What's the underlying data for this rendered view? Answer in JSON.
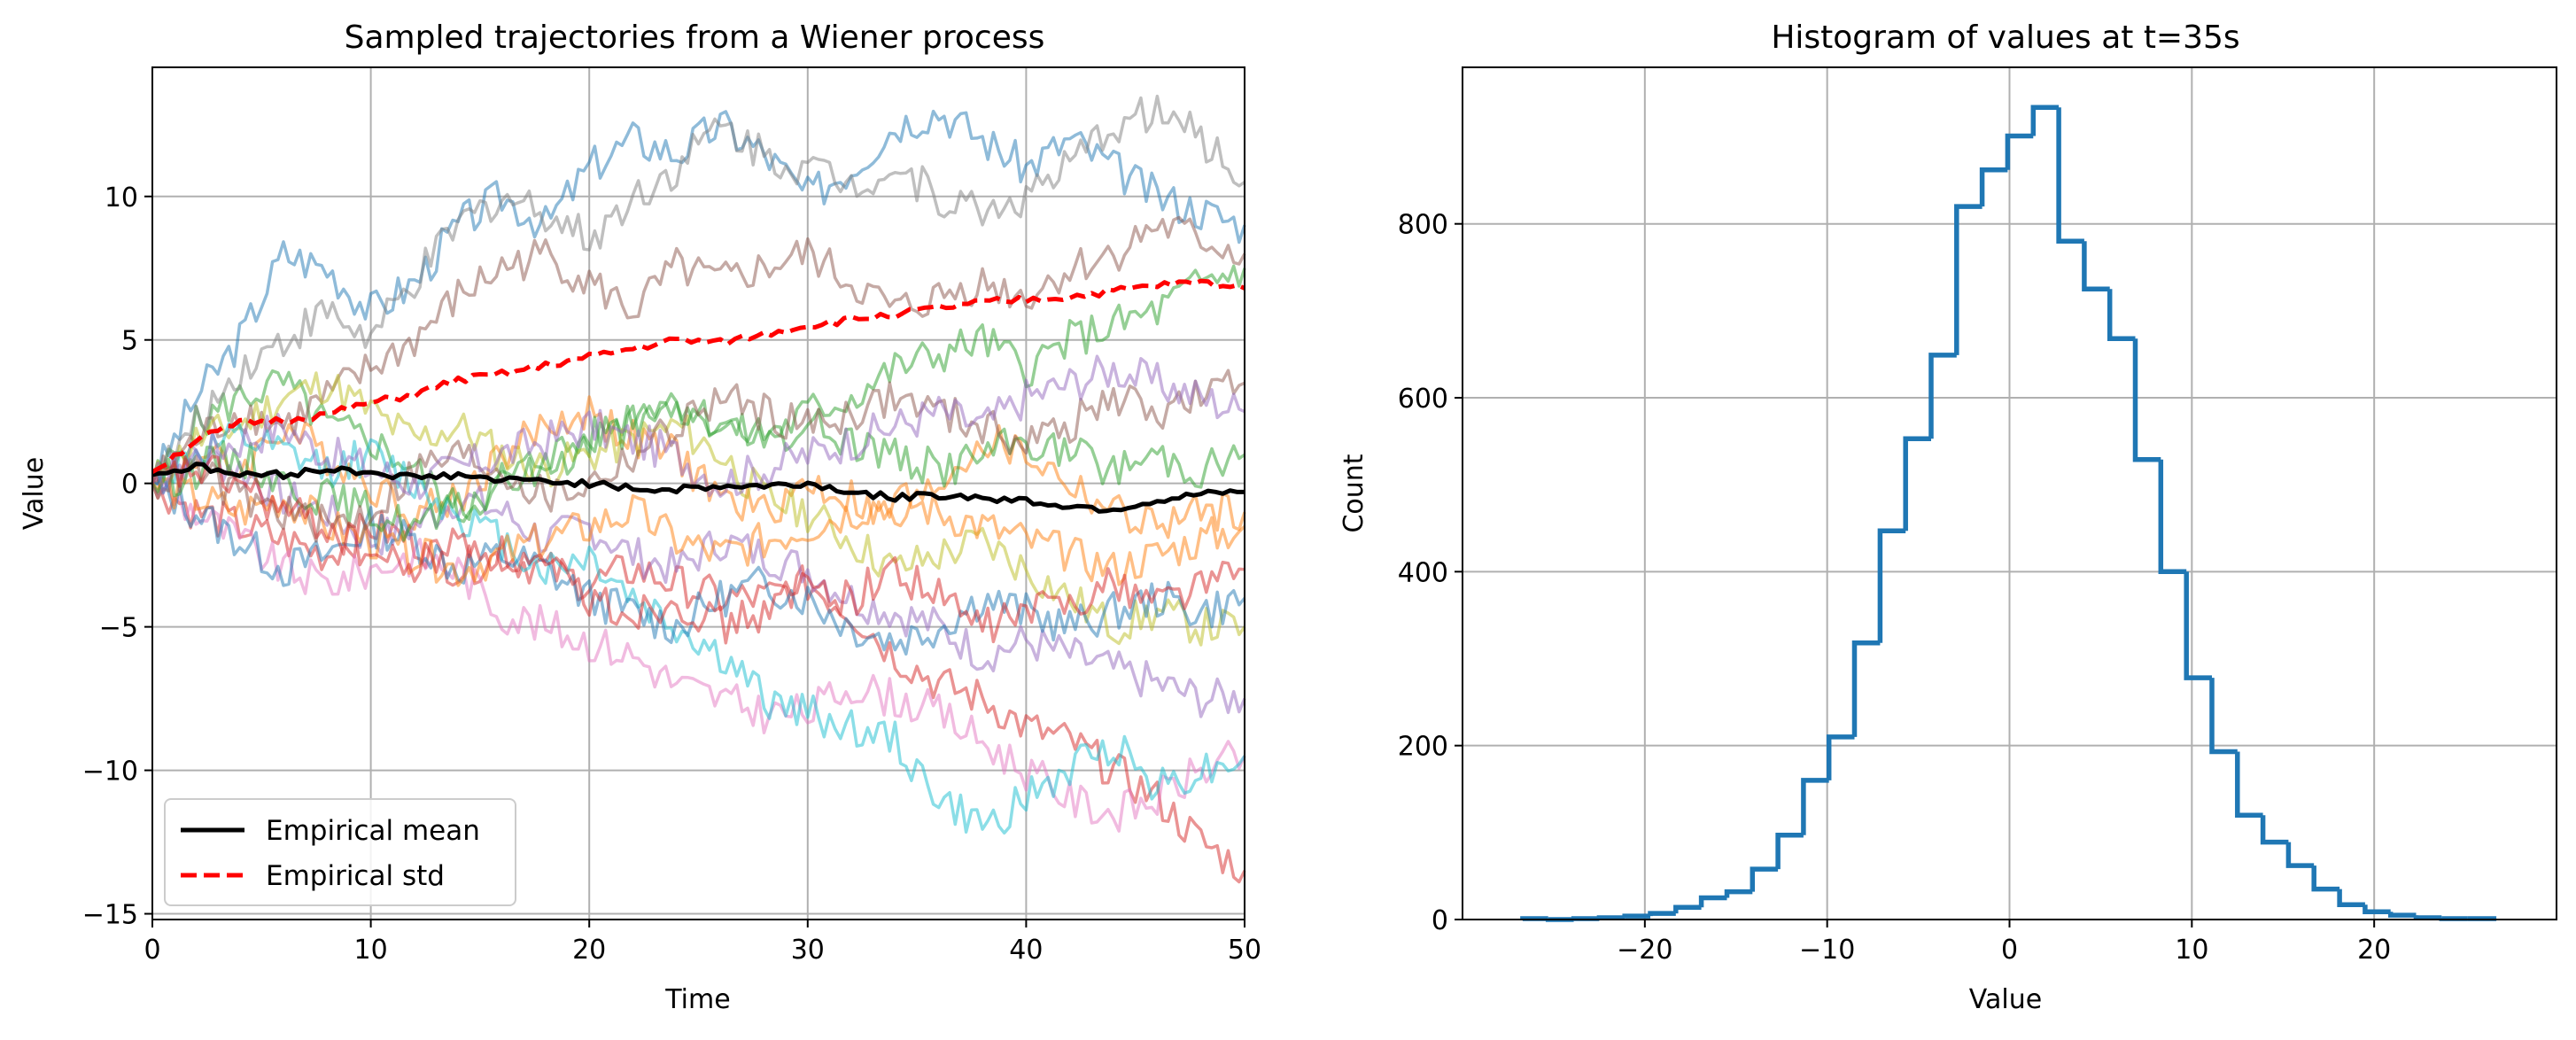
{
  "chart_data": [
    {
      "type": "line",
      "title": "Sampled trajectories from a Wiener process",
      "xlabel": "Time",
      "ylabel": "Value",
      "xlim": [
        0,
        50
      ],
      "ylim": [
        -15.2,
        14.5
      ],
      "xticks": [
        0,
        10,
        20,
        30,
        40,
        50
      ],
      "yticks": [
        -15,
        -10,
        -5,
        0,
        5,
        10
      ],
      "xtick_labels": [
        "0",
        "10",
        "20",
        "30",
        "40",
        "50"
      ],
      "ytick_labels": [
        "−15",
        "−10",
        "−5",
        "0",
        "5",
        "10"
      ],
      "grid": true,
      "legend_position": "bottom-left",
      "legend": [
        "Empirical mean",
        "Empirical std"
      ],
      "series": [
        {
          "name": "Empirical mean",
          "color": "#000000",
          "style": "solid",
          "x": [
            0,
            2,
            4,
            6,
            8,
            10,
            12,
            14,
            16,
            18,
            20,
            22,
            24,
            26,
            28,
            30,
            32,
            34,
            36,
            38,
            40,
            42,
            44,
            46,
            48,
            50
          ],
          "y": [
            0.3,
            0.6,
            0.3,
            0.3,
            0.5,
            0.4,
            0.2,
            0.3,
            0.1,
            0.1,
            0,
            -0.2,
            -0.2,
            -0.1,
            -0.1,
            0,
            -0.3,
            -0.5,
            -0.4,
            -0.5,
            -0.6,
            -0.8,
            -0.9,
            -0.6,
            -0.4,
            -0.3
          ]
        },
        {
          "name": "Empirical std",
          "color": "#ff0000",
          "style": "dashed",
          "x": [
            0,
            2,
            4,
            6,
            8,
            10,
            12,
            14,
            16,
            18,
            20,
            22,
            24,
            26,
            28,
            30,
            32,
            34,
            36,
            38,
            40,
            42,
            44,
            46,
            48,
            50
          ],
          "y": [
            0.4,
            1.5,
            2.1,
            2.2,
            2.4,
            2.8,
            3.1,
            3.6,
            3.8,
            4.1,
            4.4,
            4.7,
            5.0,
            4.9,
            5.2,
            5.5,
            5.7,
            5.9,
            6.1,
            6.3,
            6.4,
            6.5,
            6.7,
            6.9,
            7.0,
            6.8
          ]
        }
      ],
      "trajectories": [
        {
          "color": "#1f77b4",
          "y": [
            0,
            3,
            5,
            8,
            7.5,
            6,
            7,
            9,
            10,
            9,
            11,
            12,
            11.5,
            12.5,
            11.5,
            10,
            11,
            12.5,
            13,
            12,
            11,
            12,
            11,
            10,
            9.5,
            9
          ]
        },
        {
          "color": "#ff7f0e",
          "y": [
            0,
            1,
            0.5,
            2,
            1,
            0,
            -1,
            -0.5,
            1,
            2,
            2.5,
            1.5,
            1,
            -0.5,
            -1,
            0,
            -0.5,
            -1.5,
            0,
            1.5,
            1,
            0,
            -1,
            -1.5,
            -1,
            -1
          ]
        },
        {
          "color": "#2ca02c",
          "y": [
            0,
            2,
            3,
            3.5,
            2,
            1.5,
            0.5,
            -1,
            0,
            1,
            1.5,
            2.5,
            3,
            2,
            1.5,
            2.5,
            3,
            4,
            4.5,
            5,
            4,
            5,
            5.5,
            6,
            7,
            7.5
          ]
        },
        {
          "color": "#d62728",
          "y": [
            0,
            -1,
            -1.5,
            -2,
            -2.5,
            -1.5,
            -2,
            -3,
            -2.5,
            -3,
            -3.5,
            -3,
            -3.5,
            -4,
            -4,
            -3.5,
            -4.5,
            -6,
            -7,
            -7.5,
            -8.5,
            -9,
            -10,
            -11,
            -12.5,
            -13.5
          ]
        },
        {
          "color": "#9467bd",
          "y": [
            0,
            1,
            0.5,
            -0.5,
            -1,
            -2,
            -1.5,
            -0.5,
            -1,
            -2,
            -1.5,
            -2.5,
            -3,
            -2,
            -2.5,
            -3,
            -4,
            -4.5,
            -5,
            -6,
            -5.5,
            -6,
            -6.5,
            -7,
            -7.5,
            -7.5
          ]
        },
        {
          "color": "#8c564b",
          "y": [
            0,
            1.5,
            2.5,
            2,
            3,
            4,
            5,
            6.5,
            7.5,
            8,
            7,
            6,
            7.5,
            7,
            7.5,
            8,
            7,
            6,
            6.5,
            7,
            6.5,
            7.5,
            8,
            9,
            8.5,
            8
          ]
        },
        {
          "color": "#e377c2",
          "y": [
            0,
            -1,
            -2,
            -3,
            -3.5,
            -3,
            -2.5,
            -3,
            -4.5,
            -5,
            -5.5,
            -6,
            -7,
            -7.5,
            -8,
            -8,
            -7,
            -7.5,
            -8,
            -9,
            -10,
            -11,
            -11.5,
            -11,
            -10,
            -9.5
          ]
        },
        {
          "color": "#7f7f7f",
          "y": [
            0,
            2,
            4,
            5,
            6,
            5,
            7,
            9,
            10,
            9.5,
            8.5,
            10,
            11,
            12.5,
            11.5,
            11,
            10.5,
            11,
            10,
            9.5,
            10,
            11,
            12.5,
            13,
            12,
            10.5
          ]
        },
        {
          "color": "#bcbd22",
          "y": [
            0,
            1.5,
            2,
            3,
            3.5,
            2.5,
            1.5,
            2,
            1,
            0.5,
            1,
            1.5,
            2,
            1,
            -0.5,
            -1,
            -2,
            -3,
            -2.5,
            -2,
            -3,
            -4,
            -5,
            -4.5,
            -5,
            -5
          ]
        },
        {
          "color": "#17becf",
          "y": [
            0,
            1,
            1.5,
            1,
            0.5,
            1,
            0,
            -1,
            -2,
            -3,
            -2.5,
            -4,
            -5,
            -6,
            -7.5,
            -8,
            -8.5,
            -9,
            -11,
            -12,
            -11,
            -10,
            -9,
            -10.5,
            -10,
            -9.5
          ]
        },
        {
          "color": "#1f77b4",
          "y": [
            0,
            -1,
            -2,
            -3,
            -2.5,
            -1.5,
            -2,
            -3,
            -2.5,
            -3,
            -4,
            -4.5,
            -5,
            -4,
            -3.5,
            -4,
            -5,
            -5.5,
            -5,
            -4,
            -4.5,
            -5,
            -4.5,
            -4,
            -4.5,
            -4
          ]
        },
        {
          "color": "#ff7f0e",
          "y": [
            0,
            -0.5,
            -1,
            -0.5,
            -1.5,
            -2,
            -2.5,
            -3,
            -2.5,
            -2,
            -1.5,
            -1,
            -2,
            -2.5,
            -2,
            -1.5,
            -1,
            -0.5,
            -1,
            -1.5,
            -2,
            -2.5,
            -3,
            -2.5,
            -2,
            -1.5
          ]
        },
        {
          "color": "#2ca02c",
          "y": [
            0,
            0.5,
            1,
            0,
            -0.5,
            -1,
            -1.5,
            -1,
            0,
            0.5,
            1.5,
            2,
            2.5,
            2,
            1.5,
            2,
            1.5,
            1,
            0.5,
            1,
            1.5,
            1,
            0.5,
            1,
            0.5,
            1
          ]
        },
        {
          "color": "#8c564b",
          "y": [
            0,
            0.5,
            -0.5,
            -1,
            -1.5,
            -1,
            0.5,
            1,
            0.5,
            -0.5,
            0,
            1,
            2,
            3,
            2.5,
            2,
            2.5,
            3,
            2.5,
            2,
            1.5,
            2,
            3,
            2.5,
            3,
            3.5
          ]
        },
        {
          "color": "#9467bd",
          "y": [
            0,
            1,
            1.5,
            2,
            1,
            0.5,
            0,
            0.5,
            1,
            1.5,
            2,
            1.5,
            1,
            0,
            0.5,
            1,
            1.5,
            2,
            2.5,
            2,
            3,
            3.5,
            4,
            3.5,
            3,
            2.5
          ]
        },
        {
          "color": "#d62728",
          "y": [
            0,
            0.5,
            0,
            -1,
            -1.5,
            -2.5,
            -3,
            -2,
            -2.5,
            -3,
            -4,
            -4.5,
            -4,
            -5,
            -4.5,
            -3.5,
            -4,
            -3,
            -4,
            -5,
            -4.5,
            -4,
            -3.5,
            -4,
            -3.5,
            -3
          ]
        }
      ]
    },
    {
      "type": "bar",
      "subtype": "step-histogram",
      "title": "Histogram of values at t=35s",
      "xlabel": "Value",
      "ylabel": "Count",
      "xlim": [
        -30,
        30
      ],
      "ylim": [
        0,
        980
      ],
      "xticks": [
        -20,
        -10,
        0,
        10,
        20
      ],
      "yticks": [
        0,
        200,
        400,
        600,
        800
      ],
      "xtick_labels": [
        "−20",
        "−10",
        "0",
        "10",
        "20"
      ],
      "ytick_labels": [
        "0",
        "200",
        "400",
        "600",
        "800"
      ],
      "grid": true,
      "color": "#1f77b4",
      "bin_edges": [
        -26.7,
        -25.3,
        -23.9,
        -22.5,
        -21.1,
        -19.7,
        -18.3,
        -16.9,
        -15.5,
        -14.1,
        -12.7,
        -11.3,
        -9.9,
        -8.5,
        -7.1,
        -5.7,
        -4.3,
        -2.9,
        -1.5,
        -0.1,
        1.3,
        2.7,
        4.1,
        5.5,
        6.9,
        8.3,
        9.7,
        11.1,
        12.5,
        13.9,
        15.3,
        16.7,
        18.1,
        19.5,
        20.9,
        22.3,
        23.7,
        25.1,
        26.7
      ],
      "counts": [
        1,
        0,
        1,
        2,
        4,
        7,
        14,
        25,
        32,
        58,
        97,
        160,
        210,
        318,
        447,
        553,
        649,
        820,
        862,
        901,
        934,
        780,
        725,
        668,
        529,
        400,
        278,
        193,
        120,
        89,
        62,
        35,
        17,
        9,
        5,
        2,
        1,
        1
      ]
    }
  ]
}
